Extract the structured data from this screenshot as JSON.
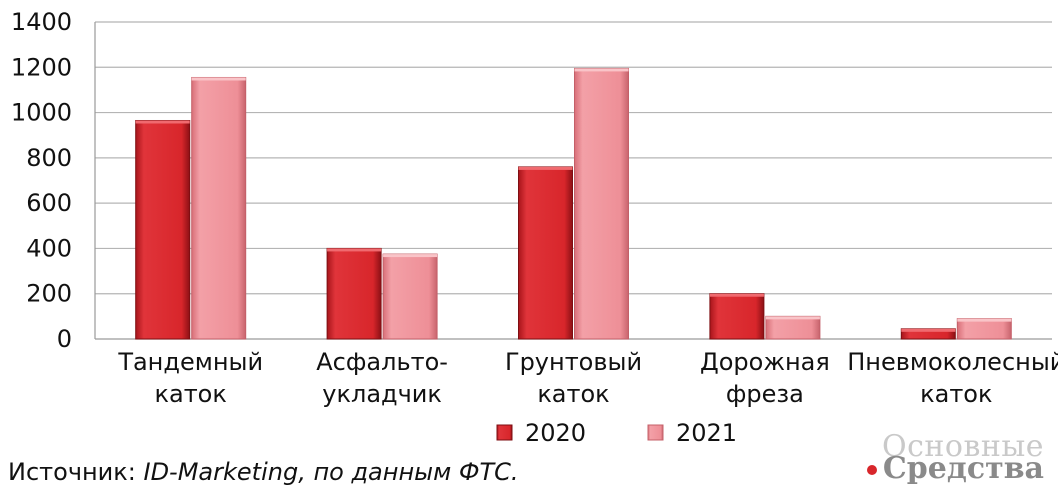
{
  "chart_data": {
    "type": "bar",
    "categories": [
      [
        "Тандемный",
        "каток"
      ],
      [
        "Асфальто-",
        "укладчик"
      ],
      [
        "Грунтовый",
        "каток"
      ],
      [
        "Дорожная",
        "фреза"
      ],
      [
        "Пневмоколесный",
        "каток"
      ]
    ],
    "series": [
      {
        "name": "2020",
        "color": "#d8262b",
        "values": [
          965,
          400,
          760,
          200,
          45
        ]
      },
      {
        "name": "2021",
        "color": "#ee8f97",
        "values": [
          1155,
          375,
          1195,
          100,
          90
        ]
      }
    ],
    "ylim": [
      0,
      1400
    ],
    "yticks": [
      0,
      200,
      400,
      600,
      800,
      1000,
      1200,
      1400
    ],
    "grid": true,
    "legend": "bottom"
  },
  "source": {
    "prefix": "Источник: ",
    "text": "ID-Marketing, по данным ФТС."
  },
  "logo": {
    "line1": "Основные",
    "line2": "Средства"
  }
}
